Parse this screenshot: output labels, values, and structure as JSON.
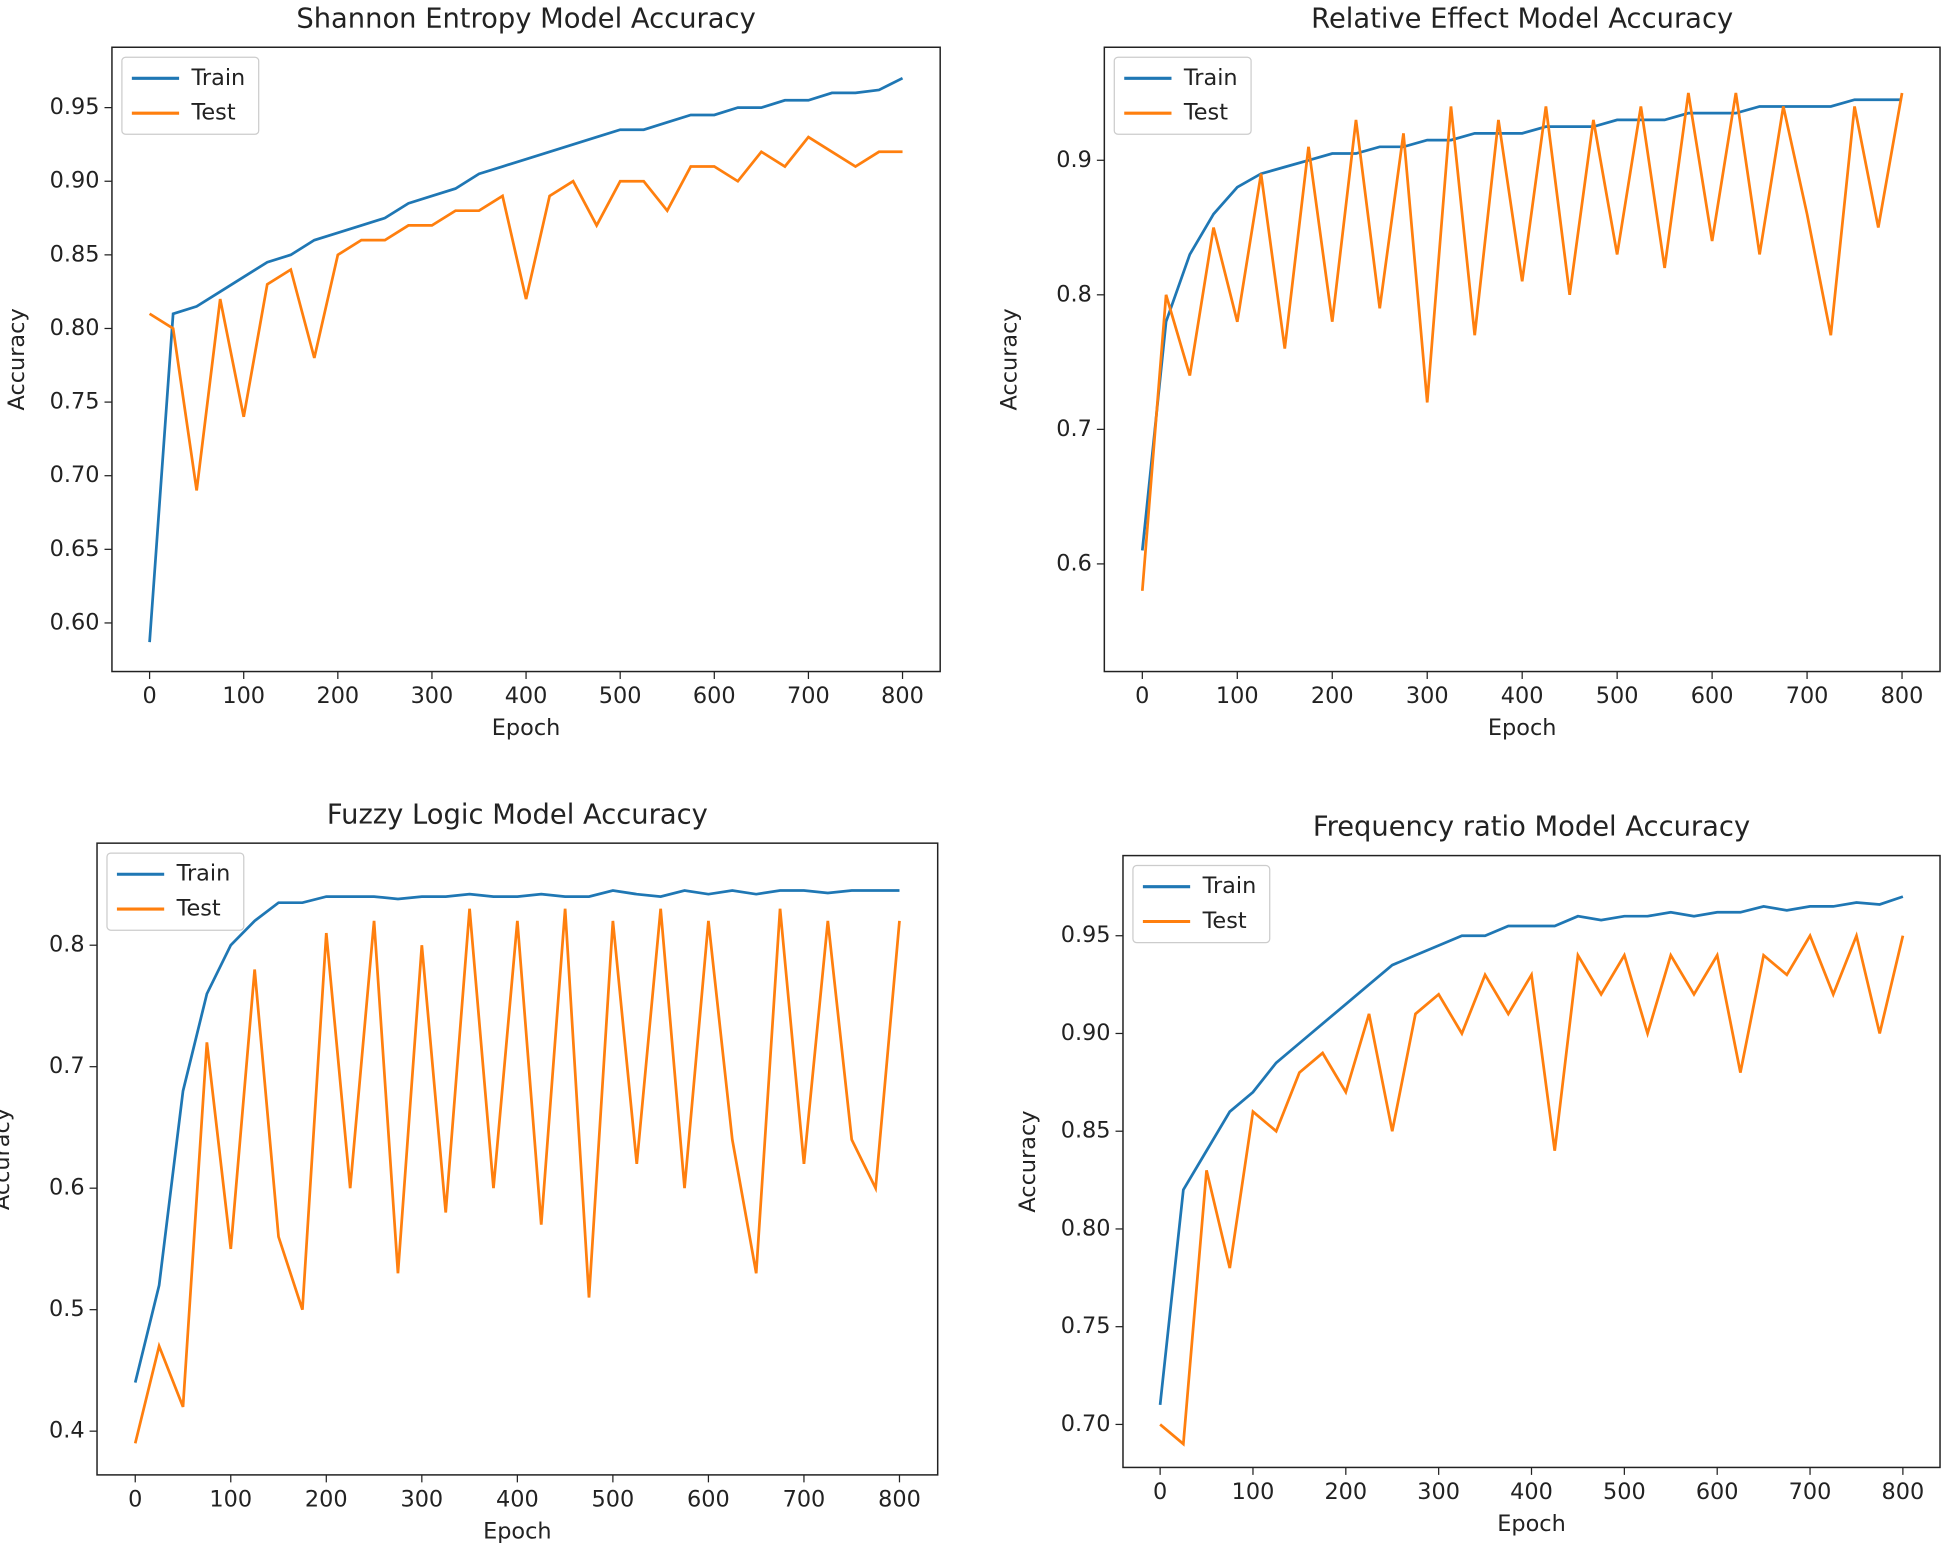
{
  "chart_data": [
    {
      "type": "line",
      "title": "Shannon Entropy Model Accuracy",
      "xlabel": "Epoch",
      "ylabel": "Accuracy",
      "legend": "upper left",
      "x": [
        0,
        25,
        50,
        75,
        100,
        125,
        150,
        175,
        200,
        225,
        250,
        275,
        300,
        325,
        350,
        375,
        400,
        425,
        450,
        475,
        500,
        525,
        550,
        575,
        600,
        625,
        650,
        675,
        700,
        725,
        750,
        775,
        800
      ],
      "xlim": [
        -40,
        840
      ],
      "xticks": [
        0,
        100,
        200,
        300,
        400,
        500,
        600,
        700,
        800
      ],
      "ylim": [
        0.567,
        0.991
      ],
      "yticks": [
        {
          "value": 0.6,
          "label": "0.60"
        },
        0.65,
        {
          "value": 0.7,
          "label": "0.70"
        },
        0.75,
        {
          "value": 0.8,
          "label": "0.80"
        },
        0.85,
        {
          "value": 0.9,
          "label": "0.90"
        },
        0.95
      ],
      "series": [
        {
          "name": "Train",
          "color": "#1f77b4",
          "values": [
            0.587,
            0.81,
            0.815,
            0.825,
            0.835,
            0.845,
            0.85,
            0.86,
            0.865,
            0.87,
            0.875,
            0.885,
            0.89,
            0.895,
            0.905,
            0.91,
            0.915,
            0.92,
            0.925,
            0.93,
            0.935,
            0.935,
            0.94,
            0.945,
            0.945,
            0.95,
            0.95,
            0.955,
            0.955,
            0.96,
            0.96,
            0.962,
            0.97
          ]
        },
        {
          "name": "Test",
          "color": "#ff7f0e",
          "values": [
            0.81,
            0.8,
            0.69,
            0.82,
            0.74,
            0.83,
            0.84,
            0.78,
            0.85,
            0.86,
            0.86,
            0.87,
            0.87,
            0.88,
            0.88,
            0.89,
            0.82,
            0.89,
            0.9,
            0.87,
            0.9,
            0.9,
            0.88,
            0.91,
            0.91,
            0.9,
            0.92,
            0.91,
            0.93,
            0.92,
            0.91,
            0.92,
            0.92
          ]
        }
      ]
    },
    {
      "type": "line",
      "title": "Relative Effect Model Accuracy",
      "xlabel": "Epoch",
      "ylabel": "Accuracy",
      "legend": "upper left",
      "x": [
        0,
        25,
        50,
        75,
        100,
        125,
        150,
        175,
        200,
        225,
        250,
        275,
        300,
        325,
        350,
        375,
        400,
        425,
        450,
        475,
        500,
        525,
        550,
        575,
        600,
        625,
        650,
        675,
        700,
        725,
        750,
        775,
        800
      ],
      "xlim": [
        -40,
        840
      ],
      "xticks": [
        0,
        100,
        200,
        300,
        400,
        500,
        600,
        700,
        800
      ],
      "ylim": [
        0.52,
        0.984
      ],
      "yticks": [
        0.6,
        0.7,
        0.8,
        0.9
      ],
      "series": [
        {
          "name": "Train",
          "color": "#1f77b4",
          "values": [
            0.61,
            0.78,
            0.83,
            0.86,
            0.88,
            0.89,
            0.895,
            0.9,
            0.905,
            0.905,
            0.91,
            0.91,
            0.915,
            0.915,
            0.92,
            0.92,
            0.92,
            0.925,
            0.925,
            0.925,
            0.93,
            0.93,
            0.93,
            0.935,
            0.935,
            0.935,
            0.94,
            0.94,
            0.94,
            0.94,
            0.945,
            0.945,
            0.945
          ]
        },
        {
          "name": "Test",
          "color": "#ff7f0e",
          "values": [
            0.58,
            0.8,
            0.74,
            0.85,
            0.78,
            0.89,
            0.76,
            0.91,
            0.78,
            0.93,
            0.79,
            0.92,
            0.72,
            0.94,
            0.77,
            0.93,
            0.81,
            0.94,
            0.8,
            0.93,
            0.83,
            0.94,
            0.82,
            0.95,
            0.84,
            0.95,
            0.83,
            0.94,
            0.86,
            0.77,
            0.94,
            0.85,
            0.95
          ]
        }
      ]
    },
    {
      "type": "line",
      "title": "Fuzzy Logic Model Accuracy",
      "xlabel": "Epoch",
      "ylabel": "Accuracy",
      "legend": "upper left",
      "x": [
        0,
        25,
        50,
        75,
        100,
        125,
        150,
        175,
        200,
        225,
        250,
        275,
        300,
        325,
        350,
        375,
        400,
        425,
        450,
        475,
        500,
        525,
        550,
        575,
        600,
        625,
        650,
        675,
        700,
        725,
        750,
        775,
        800
      ],
      "xlim": [
        -40,
        840
      ],
      "xticks": [
        0,
        100,
        200,
        300,
        400,
        500,
        600,
        700,
        800
      ],
      "ylim": [
        0.364,
        0.884
      ],
      "yticks": [
        0.4,
        0.5,
        0.6,
        0.7,
        0.8
      ],
      "series": [
        {
          "name": "Train",
          "color": "#1f77b4",
          "values": [
            0.44,
            0.52,
            0.68,
            0.76,
            0.8,
            0.82,
            0.835,
            0.835,
            0.84,
            0.84,
            0.84,
            0.838,
            0.84,
            0.84,
            0.842,
            0.84,
            0.84,
            0.842,
            0.84,
            0.84,
            0.845,
            0.842,
            0.84,
            0.845,
            0.842,
            0.845,
            0.842,
            0.845,
            0.845,
            0.843,
            0.845,
            0.845,
            0.845
          ]
        },
        {
          "name": "Test",
          "color": "#ff7f0e",
          "values": [
            0.39,
            0.47,
            0.42,
            0.72,
            0.55,
            0.78,
            0.56,
            0.5,
            0.81,
            0.6,
            0.82,
            0.53,
            0.8,
            0.58,
            0.83,
            0.6,
            0.82,
            0.57,
            0.83,
            0.51,
            0.82,
            0.62,
            0.83,
            0.6,
            0.82,
            0.64,
            0.53,
            0.83,
            0.62,
            0.82,
            0.64,
            0.6,
            0.82
          ]
        }
      ]
    },
    {
      "type": "line",
      "title": "Frequency ratio Model Accuracy",
      "xlabel": "Epoch",
      "ylabel": "Accuracy",
      "legend": "upper left",
      "x": [
        0,
        25,
        50,
        75,
        100,
        125,
        150,
        175,
        200,
        225,
        250,
        275,
        300,
        325,
        350,
        375,
        400,
        425,
        450,
        475,
        500,
        525,
        550,
        575,
        600,
        625,
        650,
        675,
        700,
        725,
        750,
        775,
        800
      ],
      "xlim": [
        -40,
        840
      ],
      "xticks": [
        0,
        100,
        200,
        300,
        400,
        500,
        600,
        700,
        800
      ],
      "ylim": [
        0.678,
        0.991
      ],
      "yticks": [
        {
          "value": 0.7,
          "label": "0.70"
        },
        0.75,
        {
          "value": 0.8,
          "label": "0.80"
        },
        0.85,
        {
          "value": 0.9,
          "label": "0.90"
        },
        0.95
      ],
      "series": [
        {
          "name": "Train",
          "color": "#1f77b4",
          "values": [
            0.71,
            0.82,
            0.84,
            0.86,
            0.87,
            0.885,
            0.895,
            0.905,
            0.915,
            0.925,
            0.935,
            0.94,
            0.945,
            0.95,
            0.95,
            0.955,
            0.955,
            0.955,
            0.96,
            0.958,
            0.96,
            0.96,
            0.962,
            0.96,
            0.962,
            0.962,
            0.965,
            0.963,
            0.965,
            0.965,
            0.967,
            0.966,
            0.97
          ]
        },
        {
          "name": "Test",
          "color": "#ff7f0e",
          "values": [
            0.7,
            0.69,
            0.83,
            0.78,
            0.86,
            0.85,
            0.88,
            0.89,
            0.87,
            0.91,
            0.85,
            0.91,
            0.92,
            0.9,
            0.93,
            0.91,
            0.93,
            0.84,
            0.94,
            0.92,
            0.94,
            0.9,
            0.94,
            0.92,
            0.94,
            0.88,
            0.94,
            0.93,
            0.95,
            0.92,
            0.95,
            0.9,
            0.95
          ]
        }
      ]
    }
  ]
}
